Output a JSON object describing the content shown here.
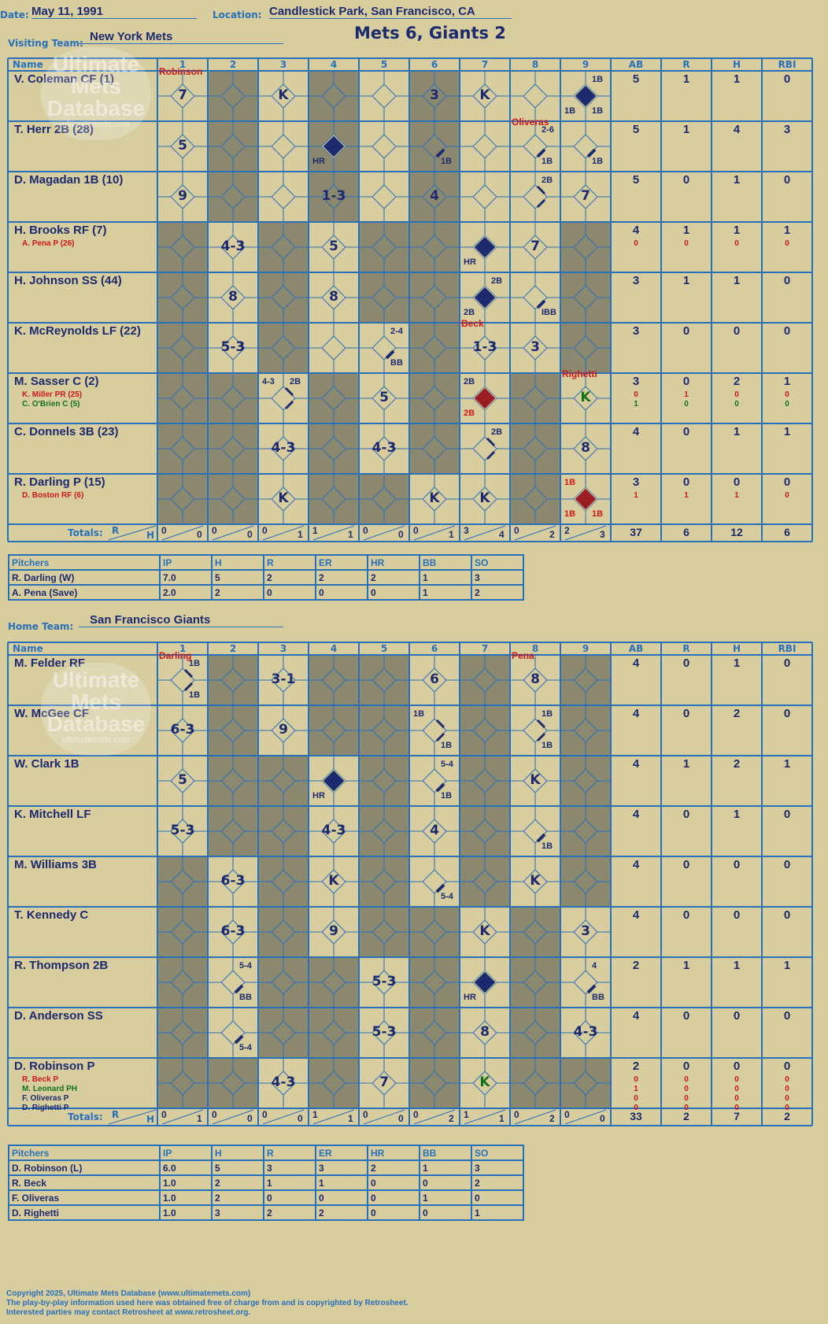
{
  "header": {
    "date_label": "Date:",
    "date": "May 11, 1991",
    "location_label": "Location:",
    "location": "Candlestick Park, San Francisco, CA",
    "visiting_label": "Visiting Team:",
    "visiting_team": "New York Mets",
    "title": "Mets 6, Giants 2",
    "home_label": "Home Team:",
    "home_team": "San Francisco Giants"
  },
  "logo": {
    "line1": "Ultimate",
    "line2": "Mets",
    "line3": "Database",
    "url": "ultimatemets.com"
  },
  "columns": {
    "name": "Name",
    "innings": [
      "1",
      "2",
      "3",
      "4",
      "5",
      "6",
      "7",
      "8",
      "9"
    ],
    "stats": [
      "AB",
      "R",
      "H",
      "RBI"
    ],
    "totals_label": "Totals:",
    "r": "R",
    "h": "H"
  },
  "colors": {
    "background": "#d7cd9f",
    "grid_blue": "#2a70b8",
    "shade": "#8c8870",
    "navy": "#1e2a6e",
    "red": "#d01818",
    "green": "#17701a",
    "dark_red": "#9a1d22"
  },
  "mets": {
    "active_cols": [
      [
        0,
        2,
        4,
        6,
        7,
        8
      ],
      [
        0,
        2,
        4,
        6,
        7,
        8
      ],
      [
        0,
        2,
        4,
        6,
        7,
        8
      ],
      [
        1,
        3,
        6,
        7
      ],
      [
        1,
        3,
        6,
        7
      ],
      [
        1,
        3,
        4,
        6,
        7
      ],
      [
        2,
        4,
        6,
        8
      ],
      [
        2,
        4,
        6,
        8
      ],
      [
        2,
        5,
        6,
        8
      ]
    ],
    "players": [
      {
        "name": "V. Coleman CF (1)",
        "subs": [],
        "stats": [
          "5",
          "1",
          "1",
          "0"
        ],
        "sub_stats": []
      },
      {
        "name": "T. Herr 2B (28)",
        "subs": [],
        "stats": [
          "5",
          "1",
          "4",
          "3"
        ],
        "sub_stats": []
      },
      {
        "name": "D. Magadan 1B (10)",
        "subs": [],
        "stats": [
          "5",
          "0",
          "1",
          "0"
        ],
        "sub_stats": []
      },
      {
        "name": "H. Brooks RF (7)",
        "subs": [
          {
            "text": "A. Pena P (26)",
            "color": "red"
          }
        ],
        "stats": [
          "4",
          "1",
          "1",
          "1"
        ],
        "sub_stats": [
          {
            "color": "red",
            "vals": [
              "0",
              "0",
              "0",
              "0"
            ]
          }
        ]
      },
      {
        "name": "H. Johnson SS (44)",
        "subs": [],
        "stats": [
          "3",
          "1",
          "1",
          "0"
        ],
        "sub_stats": []
      },
      {
        "name": "K. McReynolds LF (22)",
        "subs": [],
        "stats": [
          "3",
          "0",
          "0",
          "0"
        ],
        "sub_stats": []
      },
      {
        "name": "M. Sasser C (2)",
        "subs": [
          {
            "text": "K. Miller PR (25)",
            "color": "red"
          },
          {
            "text": "C. O'Brien C (5)",
            "color": "grn"
          }
        ],
        "stats": [
          "3",
          "0",
          "2",
          "1"
        ],
        "sub_stats": [
          {
            "color": "red",
            "vals": [
              "0",
              "1",
              "0",
              "0"
            ]
          },
          {
            "color": "grn",
            "vals": [
              "1",
              "0",
              "0",
              "0"
            ]
          }
        ]
      },
      {
        "name": "C. Donnels 3B (23)",
        "subs": [],
        "stats": [
          "4",
          "0",
          "1",
          "1"
        ],
        "sub_stats": []
      },
      {
        "name": "R. Darling P (15)",
        "subs": [
          {
            "text": "D. Boston RF (6)",
            "color": "red"
          }
        ],
        "stats": [
          "3",
          "0",
          "0",
          "0"
        ],
        "sub_stats": [
          {
            "color": "red",
            "vals": [
              "1",
              "1",
              "1",
              "0"
            ]
          }
        ]
      }
    ],
    "plays": [
      {
        "r": 0,
        "c": 0,
        "t": "7",
        "pitcher": "Robinson"
      },
      {
        "r": 0,
        "c": 2,
        "t": "K"
      },
      {
        "r": 0,
        "c": 5,
        "t": "3"
      },
      {
        "r": 0,
        "c": 6,
        "t": "K"
      },
      {
        "r": 0,
        "c": 8,
        "dia": "navy",
        "tr": "1B",
        "bl": "1B",
        "br": "1B"
      },
      {
        "r": 1,
        "c": 0,
        "t": "5"
      },
      {
        "r": 1,
        "c": 3,
        "dia": "navy",
        "bl": "HR"
      },
      {
        "r": 1,
        "c": 5,
        "slash": true,
        "br": "1B"
      },
      {
        "r": 1,
        "c": 7,
        "slash": true,
        "br": "1B",
        "tr": "2-6",
        "pitcher": "Oliveras"
      },
      {
        "r": 1,
        "c": 8,
        "slash": true,
        "br": "1B"
      },
      {
        "r": 2,
        "c": 0,
        "t": "9"
      },
      {
        "r": 2,
        "c": 3,
        "t": "1-3"
      },
      {
        "r": 2,
        "c": 5,
        "t": "4"
      },
      {
        "r": 2,
        "c": 7,
        "path": 2,
        "tr": "2B"
      },
      {
        "r": 2,
        "c": 8,
        "t": "7"
      },
      {
        "r": 3,
        "c": 1,
        "t": "4-3"
      },
      {
        "r": 3,
        "c": 3,
        "t": "5"
      },
      {
        "r": 3,
        "c": 6,
        "dia": "navy",
        "bl": "HR"
      },
      {
        "r": 3,
        "c": 7,
        "t": "7"
      },
      {
        "r": 4,
        "c": 1,
        "t": "8"
      },
      {
        "r": 4,
        "c": 3,
        "t": "8"
      },
      {
        "r": 4,
        "c": 6,
        "dia": "navy",
        "tr": "2B",
        "bl": "2B"
      },
      {
        "r": 4,
        "c": 7,
        "slash": true,
        "br": "IBB"
      },
      {
        "r": 5,
        "c": 1,
        "t": "5-3"
      },
      {
        "r": 5,
        "c": 4,
        "slash": true,
        "br": "BB",
        "tr": "2-4"
      },
      {
        "r": 5,
        "c": 6,
        "t": "1-3",
        "pitcher": "Beck"
      },
      {
        "r": 5,
        "c": 7,
        "t": "3"
      },
      {
        "r": 6,
        "c": 2,
        "path": 2,
        "tl": "4-3",
        "tr": "2B"
      },
      {
        "r": 6,
        "c": 4,
        "t": "5"
      },
      {
        "r": 6,
        "c": 6,
        "dia": "red",
        "tl": "2B",
        "bl": "2B",
        "blred": true
      },
      {
        "r": 6,
        "c": 8,
        "t": "K",
        "green": true,
        "pitcher": "Righetti"
      },
      {
        "r": 7,
        "c": 2,
        "t": "4-3"
      },
      {
        "r": 7,
        "c": 4,
        "t": "4-3"
      },
      {
        "r": 7,
        "c": 6,
        "path": 2,
        "tr": "2B"
      },
      {
        "r": 7,
        "c": 8,
        "t": "8"
      },
      {
        "r": 8,
        "c": 2,
        "t": "K"
      },
      {
        "r": 8,
        "c": 5,
        "t": "K"
      },
      {
        "r": 8,
        "c": 6,
        "t": "K"
      },
      {
        "r": 8,
        "c": 8,
        "dia": "red",
        "tl": "1B",
        "bl": "1B",
        "br": "1B",
        "tlred": true,
        "blred": true,
        "brred": true
      }
    ],
    "totals": [
      [
        "0",
        "0"
      ],
      [
        "0",
        "0"
      ],
      [
        "0",
        "1"
      ],
      [
        "1",
        "1"
      ],
      [
        "0",
        "0"
      ],
      [
        "0",
        "1"
      ],
      [
        "3",
        "4"
      ],
      [
        "0",
        "2"
      ],
      [
        "2",
        "3"
      ]
    ],
    "total_stats": [
      "37",
      "6",
      "12",
      "6"
    ],
    "pitchers": {
      "headers": [
        "Pitchers",
        "IP",
        "H",
        "R",
        "ER",
        "HR",
        "BB",
        "SO"
      ],
      "rows": [
        [
          "R. Darling (W)",
          "7.0",
          "5",
          "2",
          "2",
          "2",
          "1",
          "3"
        ],
        [
          "A. Pena (Save)",
          "2.0",
          "2",
          "0",
          "0",
          "0",
          "1",
          "2"
        ]
      ]
    }
  },
  "giants": {
    "active_cols": [
      [
        0,
        2,
        5,
        7
      ],
      [
        0,
        2,
        5,
        7
      ],
      [
        0,
        3,
        5,
        7
      ],
      [
        0,
        3,
        5,
        7
      ],
      [
        1,
        3,
        5,
        7
      ],
      [
        1,
        3,
        6,
        8
      ],
      [
        1,
        4,
        6,
        8
      ],
      [
        1,
        4,
        6,
        8
      ],
      [
        2,
        4,
        6
      ]
    ],
    "players": [
      {
        "name": "M. Felder RF",
        "subs": [],
        "stats": [
          "4",
          "0",
          "1",
          "0"
        ],
        "sub_stats": []
      },
      {
        "name": "W. McGee CF",
        "subs": [],
        "stats": [
          "4",
          "0",
          "2",
          "0"
        ],
        "sub_stats": []
      },
      {
        "name": "W. Clark 1B",
        "subs": [],
        "stats": [
          "4",
          "1",
          "2",
          "1"
        ],
        "sub_stats": []
      },
      {
        "name": "K. Mitchell LF",
        "subs": [],
        "stats": [
          "4",
          "0",
          "1",
          "0"
        ],
        "sub_stats": []
      },
      {
        "name": "M. Williams 3B",
        "subs": [],
        "stats": [
          "4",
          "0",
          "0",
          "0"
        ],
        "sub_stats": []
      },
      {
        "name": "T. Kennedy C",
        "subs": [],
        "stats": [
          "4",
          "0",
          "0",
          "0"
        ],
        "sub_stats": []
      },
      {
        "name": "R. Thompson 2B",
        "subs": [],
        "stats": [
          "2",
          "1",
          "1",
          "1"
        ],
        "sub_stats": []
      },
      {
        "name": "D. Anderson SS",
        "subs": [],
        "stats": [
          "4",
          "0",
          "0",
          "0"
        ],
        "sub_stats": []
      },
      {
        "name": "D. Robinson P",
        "subs": [
          {
            "text": "R. Beck P",
            "color": "red"
          },
          {
            "text": "M. Leonard PH",
            "color": "grn"
          },
          {
            "text": "F. Oliveras P",
            "color": "navy"
          },
          {
            "text": "D. Righetti P",
            "color": "navy"
          }
        ],
        "stats": [
          "2",
          "0",
          "0",
          "0"
        ],
        "sub_stats": [
          {
            "color": "red",
            "vals": [
              "0",
              "0",
              "0",
              "0"
            ]
          },
          {
            "color": "red",
            "vals": [
              "1",
              "0",
              "0",
              "0"
            ]
          },
          {
            "color": "red",
            "vals": [
              "0",
              "0",
              "0",
              "0"
            ]
          },
          {
            "color": "red",
            "vals": [
              "0",
              "0",
              "0",
              "0"
            ]
          }
        ]
      }
    ],
    "plays": [
      {
        "r": 0,
        "c": 0,
        "path": 2,
        "tr": "1B",
        "br": "1B",
        "pitcher": "Darling"
      },
      {
        "r": 0,
        "c": 2,
        "t": "3-1"
      },
      {
        "r": 0,
        "c": 5,
        "t": "6"
      },
      {
        "r": 0,
        "c": 7,
        "t": "8",
        "pitcher": "Pena"
      },
      {
        "r": 1,
        "c": 0,
        "t": "6-3"
      },
      {
        "r": 1,
        "c": 2,
        "t": "9"
      },
      {
        "r": 1,
        "c": 5,
        "path": 2,
        "tl": "1B",
        "br": "1B"
      },
      {
        "r": 1,
        "c": 7,
        "path": 2,
        "tr": "1B",
        "br": "1B"
      },
      {
        "r": 2,
        "c": 0,
        "t": "5"
      },
      {
        "r": 2,
        "c": 3,
        "dia": "navy",
        "bl": "HR"
      },
      {
        "r": 2,
        "c": 5,
        "slash": true,
        "br": "1B",
        "tr": "5-4"
      },
      {
        "r": 2,
        "c": 7,
        "t": "K"
      },
      {
        "r": 3,
        "c": 0,
        "t": "5-3"
      },
      {
        "r": 3,
        "c": 3,
        "t": "4-3"
      },
      {
        "r": 3,
        "c": 5,
        "t": "4"
      },
      {
        "r": 3,
        "c": 7,
        "slash": true,
        "br": "1B"
      },
      {
        "r": 4,
        "c": 1,
        "t": "6-3"
      },
      {
        "r": 4,
        "c": 3,
        "t": "K"
      },
      {
        "r": 4,
        "c": 5,
        "slash": true,
        "br": "5-4"
      },
      {
        "r": 4,
        "c": 7,
        "t": "K"
      },
      {
        "r": 5,
        "c": 1,
        "t": "6-3"
      },
      {
        "r": 5,
        "c": 3,
        "t": "9"
      },
      {
        "r": 5,
        "c": 6,
        "t": "K"
      },
      {
        "r": 5,
        "c": 8,
        "t": "3"
      },
      {
        "r": 6,
        "c": 1,
        "slash": true,
        "br": "BB",
        "tr": "5-4"
      },
      {
        "r": 6,
        "c": 4,
        "t": "5-3"
      },
      {
        "r": 6,
        "c": 6,
        "dia": "navy",
        "bl": "HR"
      },
      {
        "r": 6,
        "c": 8,
        "slash": true,
        "br": "BB",
        "tr": "4"
      },
      {
        "r": 7,
        "c": 1,
        "slash": true,
        "br": "5-4"
      },
      {
        "r": 7,
        "c": 4,
        "t": "5-3"
      },
      {
        "r": 7,
        "c": 6,
        "t": "8"
      },
      {
        "r": 7,
        "c": 8,
        "t": "4-3"
      },
      {
        "r": 8,
        "c": 2,
        "t": "4-3"
      },
      {
        "r": 8,
        "c": 4,
        "t": "7"
      },
      {
        "r": 8,
        "c": 6,
        "t": "K",
        "green": true
      }
    ],
    "totals": [
      [
        "0",
        "1"
      ],
      [
        "0",
        "0"
      ],
      [
        "0",
        "0"
      ],
      [
        "1",
        "1"
      ],
      [
        "0",
        "0"
      ],
      [
        "0",
        "2"
      ],
      [
        "1",
        "1"
      ],
      [
        "0",
        "2"
      ],
      [
        "0",
        "0"
      ]
    ],
    "total_stats": [
      "33",
      "2",
      "7",
      "2"
    ],
    "pitchers": {
      "headers": [
        "Pitchers",
        "IP",
        "H",
        "R",
        "ER",
        "HR",
        "BB",
        "SO"
      ],
      "rows": [
        [
          "D. Robinson (L)",
          "6.0",
          "5",
          "3",
          "3",
          "2",
          "1",
          "3"
        ],
        [
          "R. Beck",
          "1.0",
          "2",
          "1",
          "1",
          "0",
          "0",
          "2"
        ],
        [
          "F. Oliveras",
          "1.0",
          "2",
          "0",
          "0",
          "0",
          "1",
          "0"
        ],
        [
          "D. Righetti",
          "1.0",
          "3",
          "2",
          "2",
          "0",
          "0",
          "1"
        ]
      ]
    }
  },
  "footer": {
    "line1": "Copyright 2025, Ultimate Mets Database (www.ultimatemets.com)",
    "line2": "The play-by-play information used here was obtained free of charge from and is copyrighted by Retrosheet.",
    "line3": "Interested parties may contact Retrosheet at www.retrosheet.org."
  }
}
